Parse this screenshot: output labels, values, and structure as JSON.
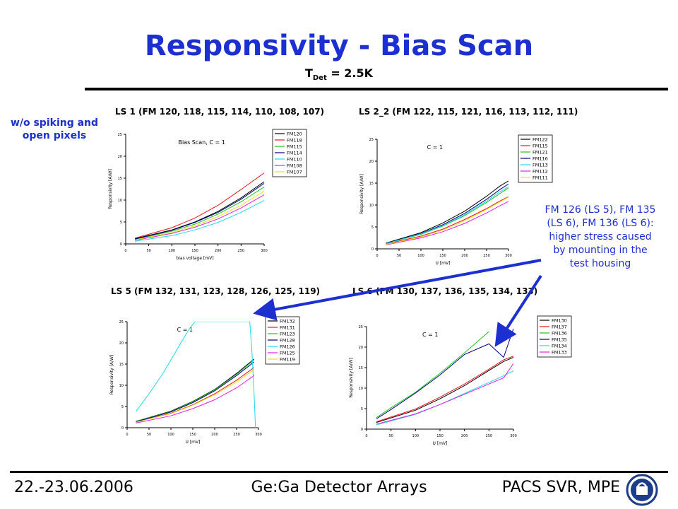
{
  "header": {
    "title": "Responsivity - Bias Scan",
    "subtitle_main": "T",
    "subtitle_sub": "Det",
    "subtitle_rest": " = 2.5K"
  },
  "notes": {
    "left": "w/o spiking and open pixels",
    "right": "FM 126 (LS 5), FM 135 (LS 6), FM 136 (LS 6): higher stress caused by mounting in the test housing"
  },
  "footer": {
    "date": "22.-23.06.2006",
    "center": "Ge:Ga Detector Arrays",
    "right": "PACS SVR, MPE"
  },
  "colors": {
    "title": "#1c2fd0",
    "arrow": "#1c2fd0",
    "series": [
      "#000000",
      "#e8161c",
      "#22c022",
      "#000080",
      "#22d8e8",
      "#e020e0",
      "#e8e020"
    ]
  },
  "chart_data": [
    {
      "type": "line",
      "title": "LS 1 (FM 120, 118, 115, 114, 110, 108, 107)",
      "annotation": "Bias Scan, C    = 1",
      "xlabel": "bias voltage [mV]",
      "ylabel": "Responsivity [A/W]",
      "xlim": [
        0,
        300
      ],
      "ylim": [
        0,
        25
      ],
      "xticks": [
        0,
        50,
        100,
        150,
        200,
        250,
        300
      ],
      "yticks": [
        0,
        5,
        10,
        15,
        20,
        25
      ],
      "legend": "top-right",
      "series": [
        {
          "name": "FM120",
          "x": [
            20,
            100,
            150,
            200,
            250,
            300
          ],
          "y": [
            1.2,
            3.2,
            5.0,
            7.4,
            10.5,
            14.2
          ]
        },
        {
          "name": "FM118",
          "x": [
            20,
            100,
            150,
            200,
            250,
            300
          ],
          "y": [
            1.3,
            3.7,
            5.9,
            8.8,
            12.4,
            16.2
          ]
        },
        {
          "name": "FM115",
          "x": [
            20,
            100,
            150,
            200,
            250,
            300
          ],
          "y": [
            1.0,
            2.9,
            4.5,
            6.8,
            9.6,
            13.0
          ]
        },
        {
          "name": "FM114",
          "x": [
            20,
            100,
            150,
            200,
            250,
            300
          ],
          "y": [
            1.1,
            3.1,
            4.9,
            7.2,
            10.2,
            13.8
          ]
        },
        {
          "name": "FM110",
          "x": [
            20,
            100,
            150,
            200,
            250,
            300
          ],
          "y": [
            0.6,
            1.9,
            3.2,
            4.9,
            7.2,
            9.9
          ]
        },
        {
          "name": "FM108",
          "x": [
            20,
            100,
            150,
            200,
            250,
            300
          ],
          "y": [
            0.8,
            2.4,
            3.8,
            5.7,
            8.2,
            11.2
          ]
        },
        {
          "name": "FM107",
          "x": [
            20,
            100,
            150,
            200,
            250,
            300
          ],
          "y": [
            0.9,
            2.6,
            4.1,
            6.2,
            8.8,
            12.0
          ]
        }
      ]
    },
    {
      "type": "line",
      "title": "LS 2_2 (FM 122, 115, 121, 116, 113, 112, 111)",
      "annotation": "C    = 1",
      "xlabel": "U      [mV]",
      "ylabel": "Responsivity [A/W]",
      "xlim": [
        0,
        300
      ],
      "ylim": [
        0,
        25
      ],
      "xticks": [
        0,
        50,
        100,
        150,
        200,
        250,
        300
      ],
      "yticks": [
        0,
        5,
        10,
        15,
        20,
        25
      ],
      "legend": "top-right",
      "series": [
        {
          "name": "FM122",
          "x": [
            20,
            100,
            150,
            200,
            250,
            280,
            300
          ],
          "y": [
            1.3,
            3.7,
            5.9,
            8.6,
            12.0,
            14.3,
            15.5
          ]
        },
        {
          "name": "FM115",
          "x": [
            20,
            100,
            150,
            200,
            250,
            280,
            300
          ],
          "y": [
            1.1,
            2.9,
            4.5,
            6.7,
            9.2,
            10.9,
            11.9
          ]
        },
        {
          "name": "FM121",
          "x": [
            20,
            100,
            150,
            200,
            250,
            280,
            300
          ],
          "y": [
            1.2,
            3.3,
            5.2,
            7.6,
            10.6,
            12.6,
            13.9
          ]
        },
        {
          "name": "FM116",
          "x": [
            20,
            100,
            150,
            200,
            250,
            280,
            300
          ],
          "y": [
            1.2,
            3.5,
            5.5,
            8.1,
            11.3,
            13.5,
            14.8
          ]
        },
        {
          "name": "FM113",
          "x": [
            20,
            100,
            150,
            200,
            250,
            280,
            300
          ],
          "y": [
            1.2,
            3.4,
            5.3,
            7.8,
            10.9,
            13.0,
            14.2
          ]
        },
        {
          "name": "FM112",
          "x": [
            20,
            100,
            150,
            200,
            250,
            280,
            300
          ],
          "y": [
            0.9,
            2.5,
            3.9,
            5.8,
            8.2,
            9.8,
            10.8
          ]
        },
        {
          "name": "FM111",
          "x": [
            20,
            100,
            150,
            200,
            250,
            280,
            300
          ],
          "y": [
            1.0,
            2.7,
            4.3,
            6.4,
            9.0,
            10.7,
            11.8
          ]
        }
      ]
    },
    {
      "type": "line",
      "title": "LS 5 (FM 132, 131, 123, 128, 126, 125, 119)",
      "annotation": "C    = 1",
      "xlabel": "U      [mV]",
      "ylabel": "Responsivity [A/W]",
      "xlim": [
        0,
        300
      ],
      "ylim": [
        0,
        25
      ],
      "xticks": [
        0,
        50,
        100,
        150,
        200,
        250,
        300
      ],
      "yticks": [
        0,
        5,
        10,
        15,
        20,
        25
      ],
      "legend": "top-right",
      "series": [
        {
          "name": "FM132",
          "x": [
            20,
            100,
            150,
            200,
            250,
            290
          ],
          "y": [
            1.5,
            3.9,
            6.2,
            9.0,
            12.8,
            16.2
          ]
        },
        {
          "name": "FM131",
          "x": [
            20,
            100,
            150,
            200,
            250,
            290
          ],
          "y": [
            1.3,
            3.4,
            5.4,
            8.0,
            11.2,
            14.2
          ]
        },
        {
          "name": "FM123",
          "x": [
            20,
            100,
            150,
            200,
            250,
            290
          ],
          "y": [
            1.5,
            3.8,
            6.1,
            8.9,
            12.6,
            15.9
          ]
        },
        {
          "name": "FM128",
          "x": [
            20,
            100,
            150,
            200,
            250,
            290
          ],
          "y": [
            1.4,
            3.7,
            5.9,
            8.7,
            12.3,
            15.5
          ]
        },
        {
          "name": "FM126",
          "x": [
            20,
            50,
            80,
            100,
            120,
            140,
            155,
            280,
            285,
            290,
            293
          ],
          "y": [
            3.8,
            8.0,
            12.5,
            16.0,
            19.5,
            23.0,
            25.0,
            25.0,
            18.0,
            8.0,
            0.0
          ]
        },
        {
          "name": "FM125",
          "x": [
            20,
            100,
            150,
            200,
            250,
            290
          ],
          "y": [
            1.1,
            2.8,
            4.5,
            6.6,
            9.4,
            12.3
          ]
        },
        {
          "name": "FM119",
          "x": [
            20,
            100,
            150,
            200,
            250,
            290
          ],
          "y": [
            1.3,
            3.3,
            5.3,
            7.8,
            10.8,
            13.7
          ]
        }
      ]
    },
    {
      "type": "line",
      "title": "LS 6 (FM 130, 137, 136, 135, 134, 133)",
      "annotation": "C    = 1",
      "xlabel": "U      [mV]",
      "ylabel": "Responsivity [A/W]",
      "xlim": [
        0,
        300
      ],
      "ylim": [
        0,
        25
      ],
      "xticks": [
        0,
        50,
        100,
        150,
        200,
        250,
        300
      ],
      "yticks": [
        0,
        5,
        10,
        15,
        20,
        25
      ],
      "legend": "top-right",
      "series": [
        {
          "name": "FM130",
          "x": [
            20,
            100,
            150,
            200,
            250,
            280,
            300
          ],
          "y": [
            1.6,
            4.6,
            7.4,
            10.6,
            14.3,
            16.5,
            17.5
          ]
        },
        {
          "name": "FM137",
          "x": [
            20,
            100,
            150,
            200,
            250,
            280,
            300
          ],
          "y": [
            1.8,
            4.9,
            7.8,
            11.0,
            14.6,
            16.9,
            17.8
          ]
        },
        {
          "name": "FM136",
          "x": [
            20,
            50,
            100,
            150,
            200,
            250
          ],
          "y": [
            2.8,
            5.2,
            9.0,
            13.6,
            18.6,
            23.8
          ]
        },
        {
          "name": "FM135",
          "x": [
            20,
            50,
            100,
            150,
            200,
            250,
            280,
            300
          ],
          "y": [
            2.5,
            4.8,
            8.8,
            13.2,
            18.2,
            20.8,
            17.5,
            24.5
          ]
        },
        {
          "name": "FM134",
          "x": [
            20,
            100,
            150,
            200,
            250,
            280,
            300
          ],
          "y": [
            1.0,
            3.6,
            6.0,
            8.7,
            11.4,
            13.0,
            14.2
          ]
        },
        {
          "name": "FM133",
          "x": [
            20,
            100,
            150,
            200,
            250,
            280,
            300
          ],
          "y": [
            1.2,
            3.7,
            6.0,
            8.5,
            11.0,
            12.5,
            16.0
          ]
        }
      ]
    }
  ]
}
